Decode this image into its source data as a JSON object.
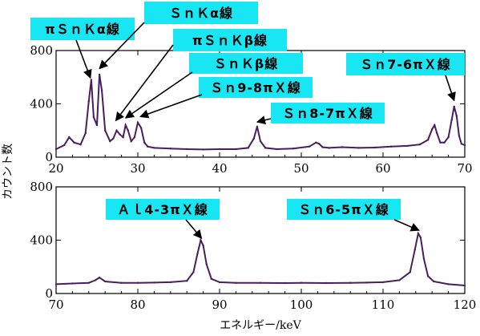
{
  "chart_data": [
    {
      "type": "line",
      "panel": "top",
      "xlim": [
        20,
        70
      ],
      "ylim": [
        0,
        800
      ],
      "xticks": [
        20,
        30,
        40,
        50,
        60,
        70
      ],
      "yticks": [
        0,
        400,
        800
      ],
      "ylabel": "カウント数",
      "xlabel": "",
      "color": "#4a1e5e",
      "series": [
        {
          "x": [
            20,
            21,
            21.6,
            22.2,
            23,
            23.6,
            24.0,
            24.3,
            24.6,
            25.0,
            25.3,
            25.6,
            26.0,
            26.6,
            27.0,
            27.4,
            27.8,
            28.2,
            28.5,
            28.8,
            29.2,
            29.6,
            30.0,
            30.4,
            30.8,
            31.2,
            32,
            34,
            36,
            38,
            40,
            42,
            43.5,
            44.2,
            44.6,
            45.0,
            45.6,
            47,
            49,
            51,
            51.8,
            52.2,
            52.6,
            53.4,
            55,
            57,
            59,
            61,
            63,
            64.5,
            65.5,
            66.0,
            66.3,
            66.6,
            67.0,
            67.5,
            68.0,
            68.4,
            68.7,
            69.0,
            69.3,
            69.6,
            70
          ],
          "y": [
            60,
            90,
            150,
            110,
            95,
            180,
            420,
            580,
            300,
            240,
            620,
            500,
            200,
            120,
            140,
            200,
            170,
            150,
            240,
            200,
            120,
            150,
            260,
            220,
            110,
            80,
            70,
            65,
            60,
            58,
            60,
            60,
            70,
            140,
            230,
            120,
            70,
            60,
            65,
            80,
            110,
            100,
            75,
            70,
            75,
            70,
            72,
            80,
            85,
            95,
            130,
            210,
            240,
            180,
            110,
            110,
            150,
            280,
            380,
            310,
            160,
            100,
            90
          ]
        }
      ],
      "annotations": [
        {
          "text": "πＳｎＫα線",
          "x": 24.2,
          "y": 570
        },
        {
          "text": "ＳｎＫα線",
          "x": 25.3,
          "y": 640
        },
        {
          "text": "πＳｎＫβ線",
          "x": 27.3,
          "y": 250
        },
        {
          "text": "ＳｎＫβ線",
          "x": 28.5,
          "y": 270
        },
        {
          "text": "Ｓｎ9-8πＸ線",
          "x": 30.3,
          "y": 280
        },
        {
          "text": "Ｓｎ8-7πＸ線",
          "x": 44.6,
          "y": 240
        },
        {
          "text": "Ｓｎ7-6πＸ線",
          "x": 68.7,
          "y": 400
        }
      ]
    },
    {
      "type": "line",
      "panel": "bottom",
      "xlim": [
        70,
        120
      ],
      "ylim": [
        0,
        800
      ],
      "xticks": [
        70,
        80,
        90,
        100,
        110,
        120
      ],
      "yticks": [
        0,
        400,
        800
      ],
      "ylabel": "",
      "xlabel": "エネルギー/keV",
      "color": "#4a1e5e",
      "series": [
        {
          "x": [
            70,
            72,
            74,
            74.8,
            75.3,
            76,
            78,
            80,
            82,
            84,
            86,
            86.8,
            87.3,
            87.7,
            88.0,
            88.4,
            89.0,
            90,
            92,
            95,
            98,
            100,
            103,
            106,
            108,
            110,
            112,
            113.3,
            113.9,
            114.3,
            114.6,
            115.0,
            115.5,
            116.2,
            118,
            120
          ],
          "y": [
            70,
            75,
            80,
            100,
            120,
            90,
            80,
            80,
            82,
            85,
            95,
            160,
            300,
            400,
            360,
            220,
            110,
            85,
            80,
            80,
            78,
            80,
            78,
            80,
            82,
            85,
            100,
            160,
            330,
            450,
            420,
            260,
            130,
            90,
            70,
            60
          ]
        }
      ],
      "annotations": [
        {
          "text": "Ａｌ4-3πＸ線",
          "x": 87.8,
          "y": 390
        },
        {
          "text": "Ｓｎ6-5πＸ線",
          "x": 114.4,
          "y": 450
        }
      ]
    }
  ]
}
